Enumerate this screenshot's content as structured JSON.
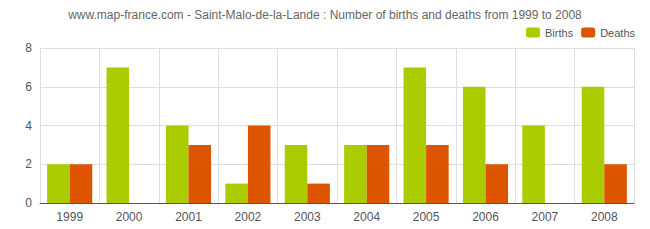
{
  "chart_data": {
    "type": "bar",
    "title": "www.map-france.com - Saint-Malo-de-la-Lande : Number of births and deaths from 1999 to 2008",
    "categories": [
      "1999",
      "2000",
      "2001",
      "2002",
      "2003",
      "2004",
      "2005",
      "2006",
      "2007",
      "2008"
    ],
    "series": [
      {
        "name": "Births",
        "color": "#aacc00",
        "values": [
          2,
          7,
          4,
          1,
          3,
          3,
          7,
          6,
          4,
          6
        ]
      },
      {
        "name": "Deaths",
        "color": "#dd5500",
        "values": [
          2,
          0,
          3,
          4,
          1,
          3,
          3,
          2,
          0,
          2
        ]
      }
    ],
    "ylim": [
      0,
      8
    ],
    "yticks": [
      0,
      2,
      4,
      6,
      8
    ],
    "grid": true,
    "legend": "upper right"
  }
}
